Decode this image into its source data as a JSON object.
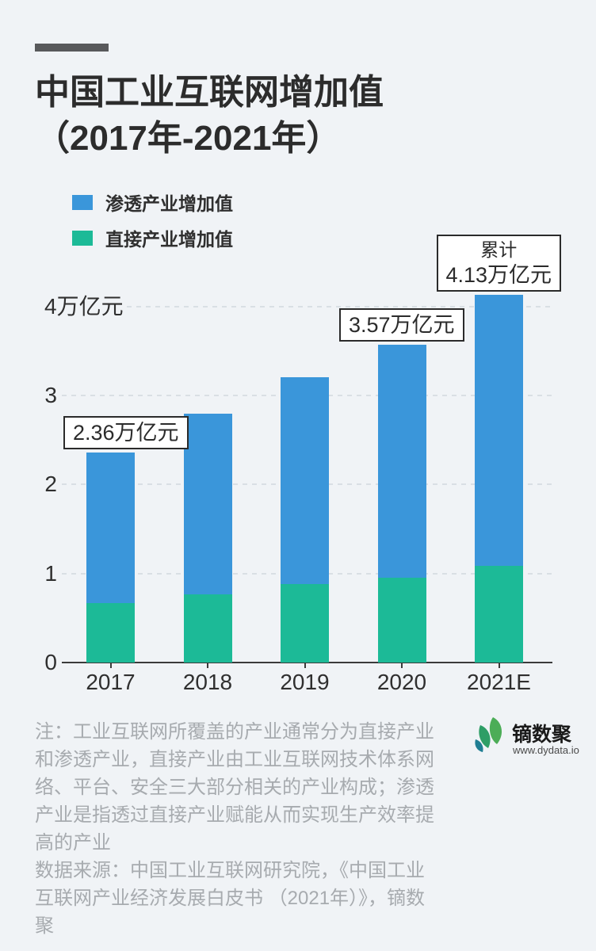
{
  "page": {
    "background": "#F0F3F6",
    "accent_bar_color": "#58595B"
  },
  "header": {
    "title_line1": "中国工业互联网增加值",
    "title_line2": "（2017年-2021年）"
  },
  "legend": [
    {
      "label": "渗透产业增加值",
      "color": "#3A96DA"
    },
    {
      "label": "直接产业增加值",
      "color": "#1CBA97"
    }
  ],
  "chart_data": {
    "type": "bar",
    "stacked": true,
    "title": "中国工业互联网增加值（2017年-2021年）",
    "unit": "万亿元",
    "categories": [
      "2017",
      "2018",
      "2019",
      "2020",
      "2021E"
    ],
    "series": [
      {
        "name": "渗透产业增加值",
        "color": "#3A96DA",
        "values": [
          1.69,
          2.03,
          2.33,
          2.62,
          3.04
        ]
      },
      {
        "name": "直接产业增加值",
        "color": "#1CBA97",
        "values": [
          0.67,
          0.77,
          0.88,
          0.95,
          1.09
        ]
      }
    ],
    "stack_order_bottom_to_top": [
      "直接产业增加值",
      "渗透产业增加值"
    ],
    "totals": [
      2.36,
      2.8,
      3.21,
      3.57,
      4.13
    ],
    "y_axis": {
      "min": 0,
      "max": 4.2,
      "ticks": [
        0,
        1,
        2,
        3,
        4
      ],
      "top_tick_label": "4万亿元",
      "grid": "dashed"
    },
    "legend_position": "top-left",
    "annotations": [
      {
        "category_index": 0,
        "lines": [
          "2.36万亿元"
        ]
      },
      {
        "category_index": 3,
        "lines": [
          "3.57万亿元"
        ]
      },
      {
        "category_index": 4,
        "lines": [
          "累计",
          "4.13万亿元"
        ]
      }
    ]
  },
  "footer": {
    "note": "注：工业互联网所覆盖的产业通常分为直接产业\n和渗透产业，直接产业由工业互联网技术体系网\n络、平台、安全三大部分相关的产业构成；渗透\n产业是指透过直接产业赋能从而实现生产效率提\n高的产业\n数据来源：中国工业互联网研究院，《中国工业\n互联网产业经济发展白皮书 （2021年）》，镝数\n聚",
    "brand": {
      "name": "镝数聚",
      "url": "www.dydata.io",
      "icon": "dydata-leaf-logo"
    }
  }
}
